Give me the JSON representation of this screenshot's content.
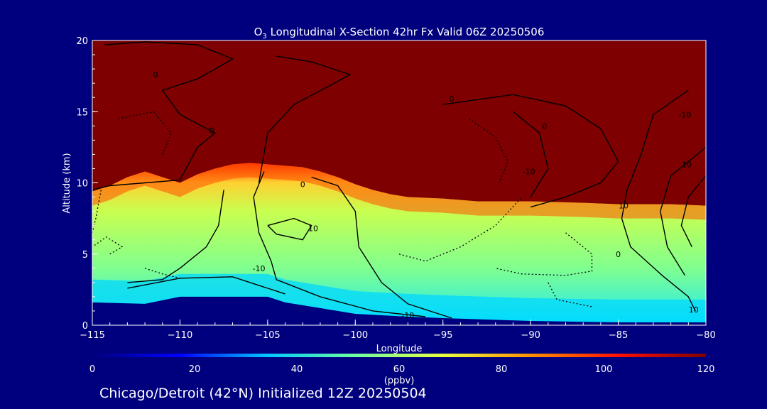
{
  "chart_data": {
    "type": "heatmap",
    "title_main": "O",
    "title_sub": "3",
    "title_rest": " Longitudinal X-Section 42hr  Fx Valid 06Z 20250506",
    "xlabel": "Longitude",
    "ylabel": "Altitude (km)",
    "xlim": [
      -115,
      -80
    ],
    "ylim": [
      0,
      20
    ],
    "x_ticks": [
      -115,
      -110,
      -105,
      -100,
      -95,
      -90,
      -85,
      -80
    ],
    "x_tick_labels": [
      "−115",
      "−110",
      "−105",
      "−100",
      "−95",
      "−90",
      "−85",
      "−80"
    ],
    "y_ticks": [
      0,
      5,
      10,
      15,
      20
    ],
    "y_tick_labels": [
      "0",
      "5",
      "10",
      "15",
      "20"
    ],
    "colorbar": {
      "min": 0,
      "max": 120,
      "ticks": [
        0,
        20,
        40,
        60,
        80,
        100,
        120
      ],
      "tick_labels": [
        "0",
        "20",
        "40",
        "60",
        "80",
        "100",
        "120"
      ],
      "label": "(ppbv)",
      "colors": [
        "#00007e",
        "#0000ff",
        "#00c8ff",
        "#6fffa0",
        "#e8ff40",
        "#ff9000",
        "#ff1000",
        "#7e0000"
      ]
    },
    "field": {
      "tropopause_km_by_lon": [
        [
          -115,
          9.4
        ],
        [
          -114,
          9.8
        ],
        [
          -113,
          10.4
        ],
        [
          -112,
          10.8
        ],
        [
          -111,
          10.4
        ],
        [
          -110,
          10.0
        ],
        [
          -109,
          10.6
        ],
        [
          -108,
          11.0
        ],
        [
          -107,
          11.3
        ],
        [
          -106,
          11.4
        ],
        [
          -105,
          11.3
        ],
        [
          -104,
          11.2
        ],
        [
          -103,
          11.1
        ],
        [
          -102,
          10.8
        ],
        [
          -101,
          10.4
        ],
        [
          -100,
          9.9
        ],
        [
          -99,
          9.5
        ],
        [
          -98,
          9.2
        ],
        [
          -97,
          9.0
        ],
        [
          -95,
          8.9
        ],
        [
          -93,
          8.7
        ],
        [
          -90,
          8.7
        ],
        [
          -87,
          8.6
        ],
        [
          -85,
          8.5
        ],
        [
          -82,
          8.5
        ],
        [
          -80,
          8.4
        ]
      ],
      "surface_km_by_lon": [
        [
          -115,
          1.6
        ],
        [
          -112,
          1.5
        ],
        [
          -110,
          2.0
        ],
        [
          -107,
          2.0
        ],
        [
          -105,
          2.0
        ],
        [
          -104,
          1.6
        ],
        [
          -102,
          1.2
        ],
        [
          -100,
          0.8
        ],
        [
          -97,
          0.6
        ],
        [
          -95,
          0.5
        ],
        [
          -90,
          0.3
        ],
        [
          -85,
          0.2
        ],
        [
          -80,
          0.2
        ]
      ],
      "stratosphere_ppbv": 120,
      "free_troposphere_ppbv": 64,
      "boundary_layer_ppbv": 45
    },
    "contours": {
      "levels": [
        "0",
        "-10",
        "10",
        "0",
        "-10",
        "10",
        "0",
        "10",
        "-10",
        "-10",
        "10",
        "0",
        "0",
        "0"
      ],
      "dotted_means_negative": true
    }
  },
  "footer": {
    "text": "Chicago/Detroit (42°N) Initialized 12Z 20250504"
  }
}
